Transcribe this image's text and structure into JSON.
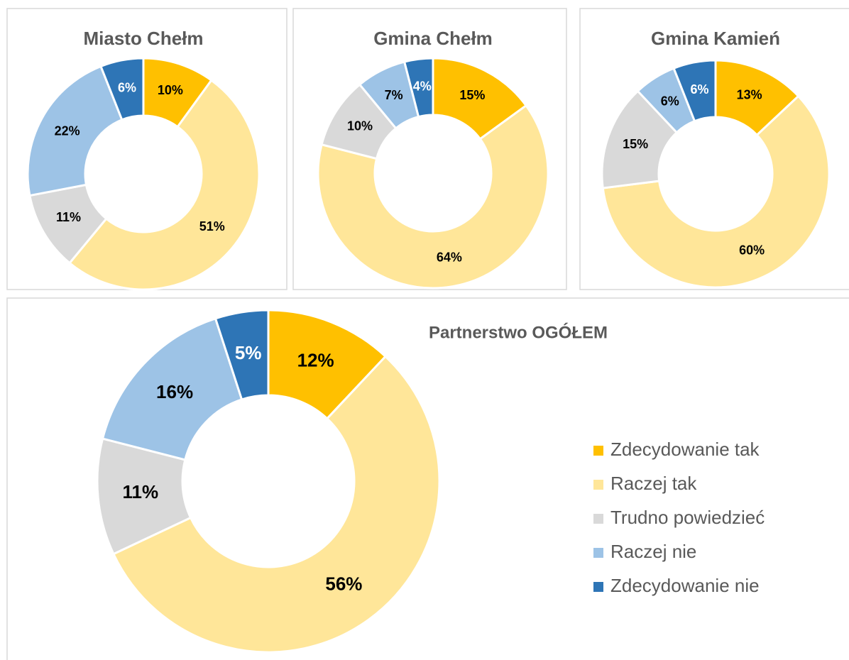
{
  "chart_data": [
    {
      "type": "donut",
      "title": "Miasto Chełm",
      "values": [
        10,
        51,
        11,
        22,
        6
      ],
      "value_labels": [
        "10%",
        "51%",
        "11%",
        "22%",
        "6%"
      ],
      "colors": [
        "#ffc000",
        "#ffe699",
        "#d9d9d9",
        "#9dc3e6",
        "#2e75b6"
      ]
    },
    {
      "type": "donut",
      "title": "Gmina Chełm",
      "values": [
        15,
        64,
        10,
        7,
        4
      ],
      "value_labels": [
        "15%",
        "64%",
        "10%",
        "7%",
        "4%"
      ],
      "colors": [
        "#ffc000",
        "#ffe699",
        "#d9d9d9",
        "#9dc3e6",
        "#2e75b6"
      ]
    },
    {
      "type": "donut",
      "title": "Gmina Kamień",
      "values": [
        13,
        60,
        15,
        6,
        6
      ],
      "value_labels": [
        "13%",
        "60%",
        "15%",
        "6%",
        "6%"
      ],
      "colors": [
        "#ffc000",
        "#ffe699",
        "#d9d9d9",
        "#9dc3e6",
        "#2e75b6"
      ]
    },
    {
      "type": "donut",
      "title": "Partnerstwo OGÓŁEM",
      "categories": [
        "Zdecydowanie tak",
        "Raczej tak",
        "Trudno powiedzieć",
        "Raczej nie",
        "Zdecydowanie nie"
      ],
      "values": [
        12,
        56,
        11,
        16,
        5
      ],
      "value_labels": [
        "12%",
        "56%",
        "11%",
        "16%",
        "5%"
      ],
      "colors": [
        "#ffc000",
        "#ffe699",
        "#d9d9d9",
        "#9dc3e6",
        "#2e75b6"
      ],
      "legend": "right"
    }
  ]
}
